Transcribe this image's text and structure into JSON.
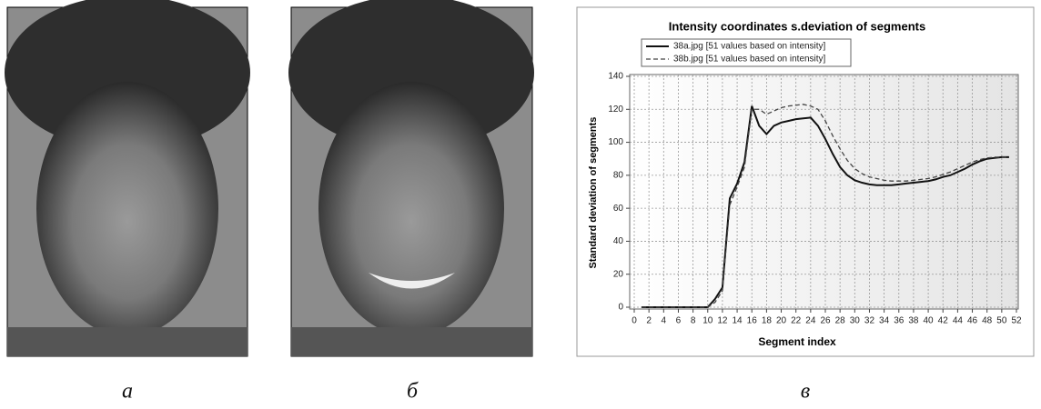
{
  "figure": {
    "captions": [
      "а",
      "б",
      "в"
    ]
  },
  "chart_data": {
    "type": "line",
    "title": "Intensity coordinates s.deviation of segments",
    "xlabel": "Segment index",
    "ylabel": "Standard deviation of segments",
    "x": [
      1,
      2,
      3,
      4,
      5,
      6,
      7,
      8,
      9,
      10,
      11,
      12,
      13,
      14,
      15,
      16,
      17,
      18,
      19,
      20,
      21,
      22,
      23,
      24,
      25,
      26,
      27,
      28,
      29,
      30,
      31,
      32,
      33,
      34,
      35,
      36,
      37,
      38,
      39,
      40,
      41,
      42,
      43,
      44,
      45,
      46,
      47,
      48,
      49,
      50,
      51
    ],
    "series": [
      {
        "name": "38a.jpg [51 values based on intensity]",
        "color": "#111111",
        "style": "solid",
        "values": [
          0,
          0,
          0,
          0,
          0,
          0,
          0,
          0,
          0,
          0,
          5,
          12,
          66,
          75,
          88,
          122,
          110,
          105,
          110,
          112,
          113,
          114,
          114.5,
          115,
          110,
          102,
          93,
          85,
          80,
          77,
          75.5,
          74.5,
          74,
          74,
          74,
          74.5,
          75,
          75.5,
          76,
          76.5,
          77.5,
          79,
          80,
          82,
          84,
          86.5,
          88.5,
          90,
          90.5,
          91,
          91
        ]
      },
      {
        "name": "38b.jpg [51 values based on intensity]",
        "color": "#444444",
        "style": "dashed",
        "values": [
          0,
          0,
          0,
          0,
          0,
          0,
          0,
          0,
          0,
          0,
          3,
          10,
          62,
          73,
          85,
          120,
          120,
          117,
          119,
          121,
          122,
          122.5,
          123,
          122,
          120,
          113,
          104,
          96,
          89,
          84,
          81,
          79,
          78,
          77,
          76.5,
          76.5,
          76.5,
          77,
          77.5,
          78,
          79,
          80.5,
          82,
          84,
          86,
          88,
          89.5,
          90.5,
          91,
          91,
          91
        ]
      }
    ],
    "xlim": [
      0,
      52
    ],
    "xticks": [
      0,
      2,
      4,
      6,
      8,
      10,
      12,
      14,
      16,
      18,
      20,
      22,
      24,
      26,
      28,
      30,
      32,
      34,
      36,
      38,
      40,
      42,
      44,
      46,
      48,
      50,
      52
    ],
    "ylim": [
      0,
      140
    ],
    "yticks": [
      0,
      20,
      40,
      60,
      80,
      100,
      120,
      140
    ],
    "grid": true,
    "legend": "top-left"
  }
}
